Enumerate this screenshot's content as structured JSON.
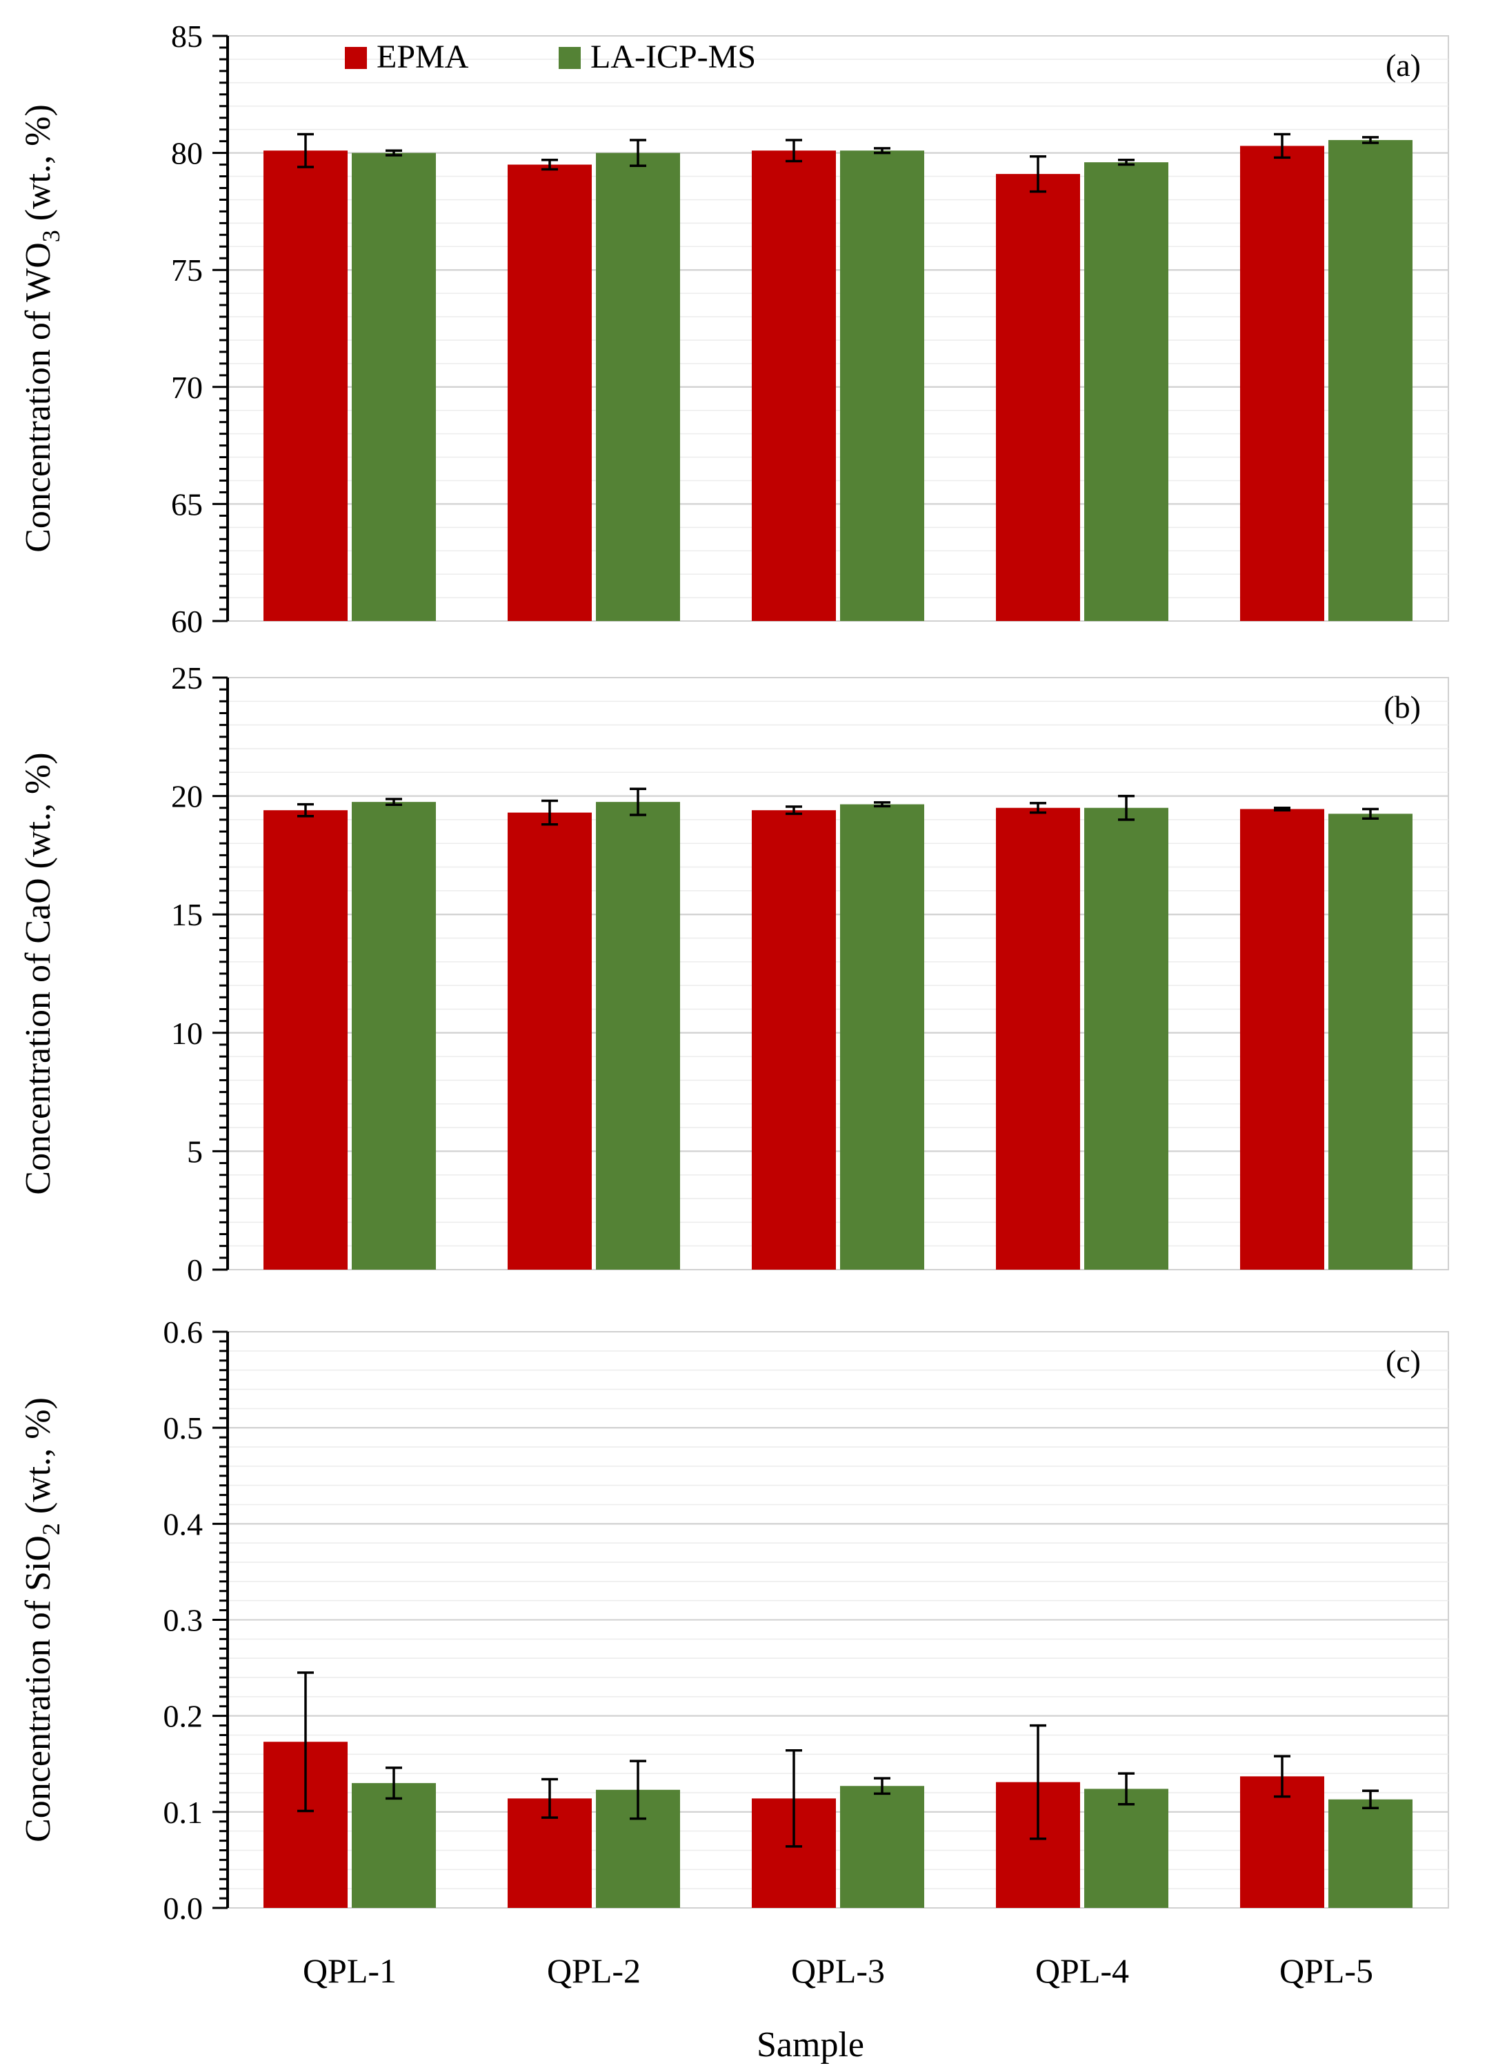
{
  "colors": {
    "epma": "#c00000",
    "laicpms": "#548235"
  },
  "legend": [
    {
      "name": "EPMA",
      "color": "#c00000"
    },
    {
      "name": "LA-ICP-MS",
      "color": "#548235"
    }
  ],
  "xlabel": "Sample",
  "chart_data": [
    {
      "type": "bar",
      "panel": "(a)",
      "ylabel_main": "Concentration of WO",
      "ylabel_sub": "3",
      "ylabel_tail": " (wt., %)",
      "categories": [
        "QPL-1",
        "QPL-2",
        "QPL-3",
        "QPL-4",
        "QPL-5"
      ],
      "ylim": [
        60,
        85
      ],
      "yticks": [
        "60",
        "65",
        "70",
        "75",
        "80",
        "85"
      ],
      "ytick_values": [
        60,
        65,
        70,
        75,
        80,
        85
      ],
      "grid": true,
      "legend_position": "top-left",
      "series": [
        {
          "name": "EPMA",
          "values": [
            80.1,
            79.5,
            80.1,
            79.1,
            80.3
          ],
          "errors": [
            0.7,
            0.2,
            0.45,
            0.75,
            0.5
          ]
        },
        {
          "name": "LA-ICP-MS",
          "values": [
            80.0,
            80.0,
            80.1,
            79.6,
            80.55
          ],
          "errors": [
            0.1,
            0.55,
            0.1,
            0.1,
            0.12
          ]
        }
      ]
    },
    {
      "type": "bar",
      "panel": "(b)",
      "ylabel_main": "Concentration of CaO",
      "ylabel_sub": "",
      "ylabel_tail": " (wt., %)",
      "categories": [
        "QPL-1",
        "QPL-2",
        "QPL-3",
        "QPL-4",
        "QPL-5"
      ],
      "ylim": [
        0,
        25
      ],
      "yticks": [
        "0",
        "5",
        "10",
        "15",
        "20",
        "25"
      ],
      "ytick_values": [
        0,
        5,
        10,
        15,
        20,
        25
      ],
      "grid": true,
      "series": [
        {
          "name": "EPMA",
          "values": [
            19.4,
            19.3,
            19.4,
            19.5,
            19.45
          ],
          "errors": [
            0.25,
            0.5,
            0.15,
            0.2,
            0.05
          ]
        },
        {
          "name": "LA-ICP-MS",
          "values": [
            19.75,
            19.75,
            19.65,
            19.5,
            19.25
          ],
          "errors": [
            0.12,
            0.55,
            0.08,
            0.5,
            0.2
          ]
        }
      ]
    },
    {
      "type": "bar",
      "panel": "(c)",
      "ylabel_main": "Concentration of SiO",
      "ylabel_sub": "2",
      "ylabel_tail": " (wt., %)",
      "categories": [
        "QPL-1",
        "QPL-2",
        "QPL-3",
        "QPL-4",
        "QPL-5"
      ],
      "ylim": [
        0,
        0.6
      ],
      "yticks": [
        "0.0",
        "0.1",
        "0.2",
        "0.3",
        "0.4",
        "0.5",
        "0.6"
      ],
      "ytick_values": [
        0,
        0.1,
        0.2,
        0.3,
        0.4,
        0.5,
        0.6
      ],
      "grid": true,
      "series": [
        {
          "name": "EPMA",
          "values": [
            0.173,
            0.114,
            0.114,
            0.131,
            0.137
          ],
          "errors": [
            0.072,
            0.02,
            0.05,
            0.059,
            0.021
          ]
        },
        {
          "name": "LA-ICP-MS",
          "values": [
            0.13,
            0.123,
            0.127,
            0.124,
            0.113
          ],
          "errors": [
            0.016,
            0.03,
            0.008,
            0.016,
            0.009
          ]
        }
      ]
    }
  ]
}
